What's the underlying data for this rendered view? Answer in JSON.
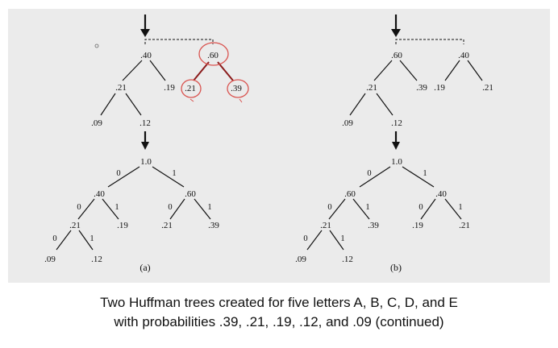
{
  "figure": {
    "panel_a": {
      "label": "(a)",
      "forest": {
        "tree1": {
          "root": ".40",
          "left": ".21",
          "right": ".19",
          "left_left": ".09",
          "left_right": ".12"
        },
        "tree2": {
          "root": ".60",
          "left": ".21",
          "right": ".39"
        }
      },
      "merged": {
        "root": "1.0",
        "b0": "0",
        "b1": "1",
        "n1": ".40",
        "n1_b0": "0",
        "n1_b1": "1",
        "n1_left": ".21",
        "n1_right": ".19",
        "n1_left_b0": "0",
        "n1_left_b1": "1",
        "n1_left_left": ".09",
        "n1_left_right": ".12",
        "n2": ".60",
        "n2_b0": "0",
        "n2_b1": "1",
        "n2_left": ".21",
        "n2_right": ".39"
      }
    },
    "panel_b": {
      "label": "(b)",
      "forest": {
        "tree1": {
          "root": ".60",
          "left": ".21",
          "right": ".39",
          "left_left": ".09",
          "left_right": ".12"
        },
        "tree2": {
          "root": ".40",
          "left": ".19",
          "right": ".21"
        }
      },
      "merged": {
        "root": "1.0",
        "b0": "0",
        "b1": "1",
        "n1": ".60",
        "n1_b0": "0",
        "n1_b1": "1",
        "n1_left": ".21",
        "n1_right": ".39",
        "n1_left_b0": "0",
        "n1_left_b1": "1",
        "n1_left_left": ".09",
        "n1_left_right": ".12",
        "n2": ".40",
        "n2_b0": "0",
        "n2_b1": "1",
        "n2_left": ".19",
        "n2_right": ".21"
      }
    },
    "annotation_color": "#d9534f"
  },
  "caption": {
    "line1": "Two Huffman trees created for five letters A, B, C, D, and E",
    "line2": "with probabilities .39, .21, .19, .12, and .09 (continued)"
  }
}
